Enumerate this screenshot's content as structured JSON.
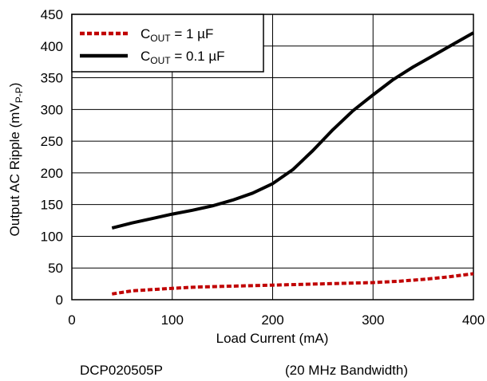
{
  "chart_data": {
    "type": "line",
    "xlabel": "Load Current (mA)",
    "ylabel": {
      "main": "Output AC Ripple (mV",
      "sub": "P-P",
      "close": ")"
    },
    "xlim": [
      0,
      400
    ],
    "ylim": [
      0,
      450
    ],
    "xticks": [
      0,
      100,
      200,
      300,
      400
    ],
    "yticks": [
      0,
      50,
      100,
      150,
      200,
      250,
      300,
      350,
      400,
      450
    ],
    "grid": true,
    "legend_position": "top-left",
    "series": [
      {
        "name": "COUT = 1 µF",
        "legend": {
          "base": "C",
          "sub": "OUT",
          "rest": " = 1 µF"
        },
        "color": "#c00000",
        "style": "dashed",
        "x": [
          40,
          60,
          80,
          100,
          125,
          150,
          175,
          200,
          225,
          250,
          275,
          300,
          325,
          350,
          375,
          400
        ],
        "y": [
          9,
          14,
          16,
          18,
          20,
          21,
          22,
          23,
          24,
          25,
          26,
          27,
          29,
          32,
          36,
          41
        ]
      },
      {
        "name": "COUT = 0.1 µF",
        "legend": {
          "base": "C",
          "sub": "OUT",
          "rest": " = 0.1 µF"
        },
        "color": "#000000",
        "style": "solid",
        "x": [
          40,
          60,
          80,
          100,
          120,
          140,
          160,
          180,
          200,
          220,
          240,
          260,
          280,
          300,
          320,
          340,
          360,
          380,
          400
        ],
        "y": [
          113,
          121,
          128,
          135,
          141,
          148,
          157,
          168,
          183,
          205,
          235,
          268,
          298,
          323,
          347,
          367,
          385,
          403,
          421
        ]
      }
    ]
  },
  "footer": {
    "left": "DCP020505P",
    "right": "(20 MHz Bandwidth)"
  }
}
